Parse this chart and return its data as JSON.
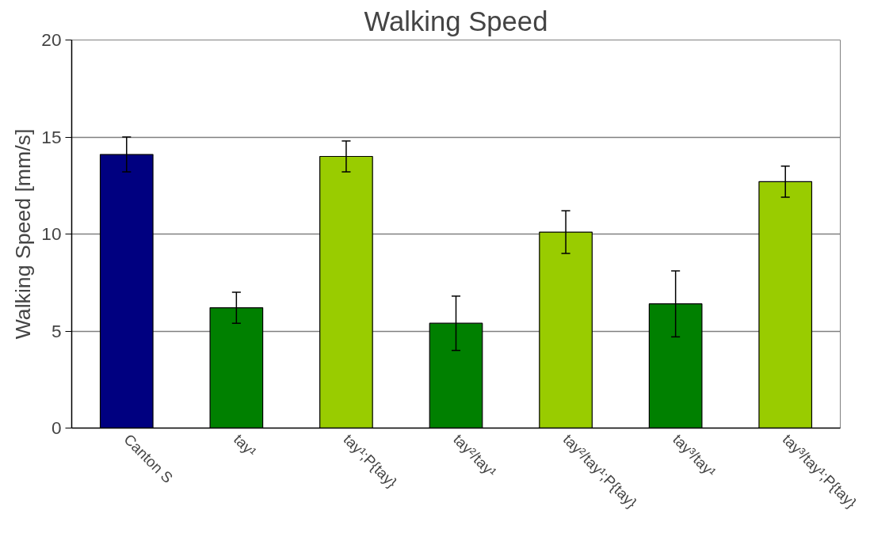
{
  "chart_data": {
    "type": "bar",
    "title": "Walking Speed",
    "ylabel": "Walking Speed [mm/s]",
    "categories": [
      "Canton S",
      "tay¹",
      "tay¹;P{tay}",
      "tay²/tay¹",
      "tay²/tay¹;P{tay}",
      "tay³/tay¹",
      "tay³/tay¹;P{tay}"
    ],
    "values": [
      14.1,
      6.2,
      14.0,
      5.4,
      10.1,
      6.4,
      12.7
    ],
    "errors": [
      0.9,
      0.8,
      0.8,
      1.4,
      1.1,
      1.7,
      0.8
    ],
    "colors": [
      "#000080",
      "#008000",
      "#99cc00",
      "#008000",
      "#99cc00",
      "#008000",
      "#99cc00"
    ],
    "ylim": [
      0,
      20
    ],
    "yticks": [
      0,
      5,
      10,
      15,
      20
    ],
    "grid": "y"
  }
}
